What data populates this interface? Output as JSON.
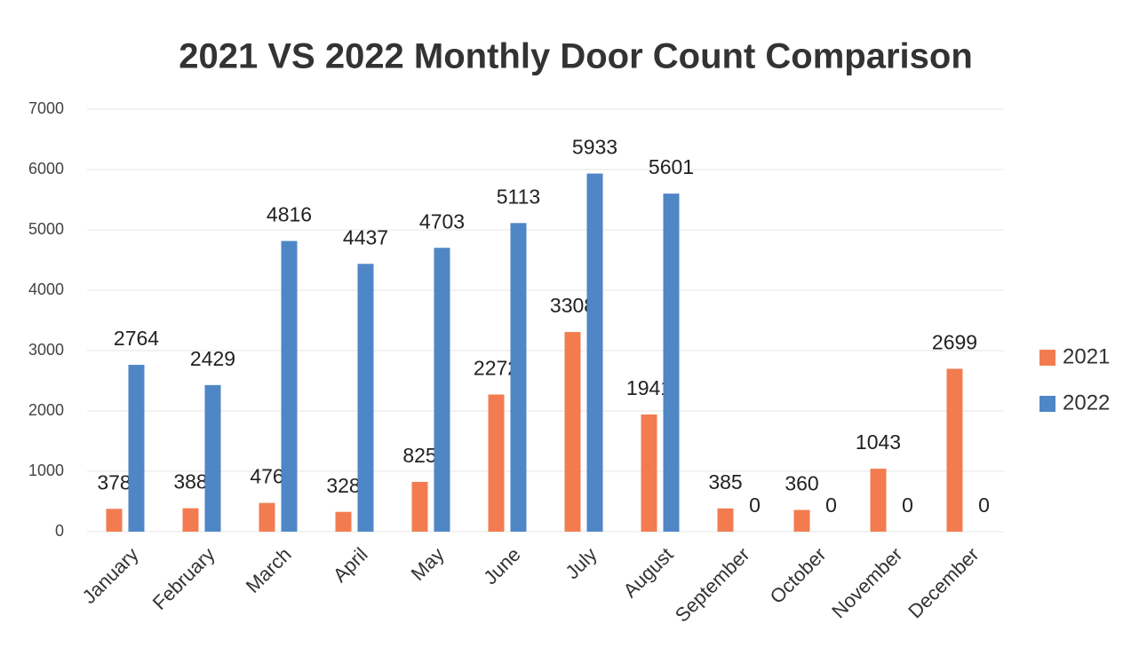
{
  "chart_data": {
    "type": "bar",
    "title": "2021 VS 2022 Monthly Door Count Comparison",
    "categories": [
      "January",
      "February",
      "March",
      "April",
      "May",
      "June",
      "July",
      "August",
      "September",
      "October",
      "November",
      "December"
    ],
    "series": [
      {
        "name": "2021",
        "color": "#f27c50",
        "values": [
          378,
          388,
          476,
          328,
          825,
          2272,
          3308,
          1941,
          385,
          360,
          1043,
          2699
        ]
      },
      {
        "name": "2022",
        "color": "#4f86c6",
        "values": [
          2764,
          2429,
          4816,
          4437,
          4703,
          5113,
          5933,
          5601,
          0,
          0,
          0,
          0
        ]
      }
    ],
    "ylim": [
      0,
      7000
    ],
    "yticks": [
      0,
      1000,
      2000,
      3000,
      4000,
      5000,
      6000,
      7000
    ],
    "grid": true,
    "legend": "right"
  }
}
